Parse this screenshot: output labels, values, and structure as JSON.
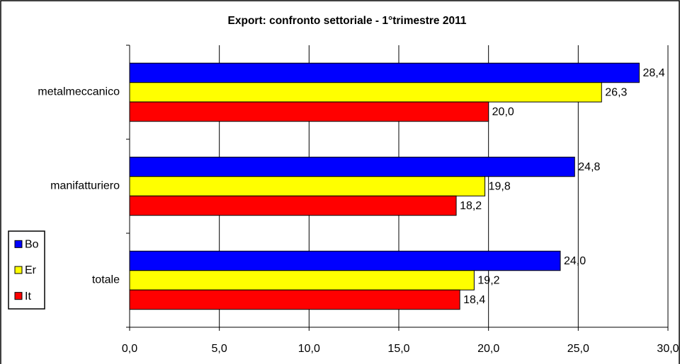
{
  "chart_data": {
    "type": "bar",
    "orientation": "horizontal",
    "title": "Export: confronto settoriale - 1°trimestre 2011",
    "categories": [
      "metalmeccanico",
      "manifatturiero",
      "totale"
    ],
    "series": [
      {
        "name": "Bo",
        "color": "#0000ff",
        "values": [
          28.4,
          24.8,
          24.0
        ],
        "value_labels": [
          "28,4",
          "24,8",
          "24,0"
        ]
      },
      {
        "name": "Er",
        "color": "#ffff00",
        "values": [
          26.3,
          19.8,
          19.2
        ],
        "value_labels": [
          "26,3",
          "19,8",
          "19,2"
        ]
      },
      {
        "name": "It",
        "color": "#ff0000",
        "values": [
          20.0,
          18.2,
          18.4
        ],
        "value_labels": [
          "20,0",
          "18,2",
          "18,4"
        ]
      }
    ],
    "xlim": [
      0,
      30
    ],
    "xticks": [
      {
        "value": 0,
        "label": "0,0"
      },
      {
        "value": 5,
        "label": "5,0"
      },
      {
        "value": 10,
        "label": "10,0"
      },
      {
        "value": 15,
        "label": "15,0"
      },
      {
        "value": 20,
        "label": "20,0"
      },
      {
        "value": 25,
        "label": "25,0"
      },
      {
        "value": 30,
        "label": "30,0"
      }
    ],
    "grid": true,
    "legend": "left"
  }
}
